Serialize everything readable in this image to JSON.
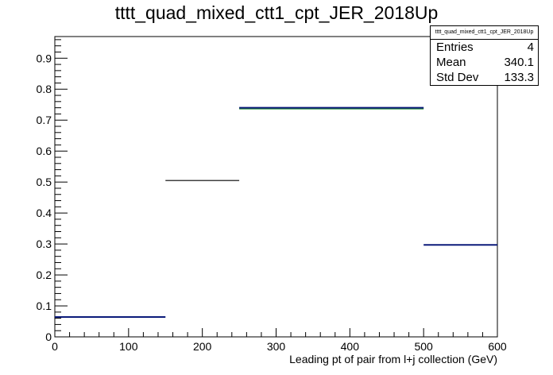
{
  "chart_data": {
    "type": "histogram-step",
    "title": "tttt_quad_mixed_ctt1_cpt_JER_2018Up",
    "xlabel": "Leading pt of pair from l+j collection (GeV)",
    "ylabel": "",
    "xlim": [
      0,
      600
    ],
    "ylim": [
      0,
      0.97
    ],
    "x_ticks": [
      0,
      100,
      200,
      300,
      400,
      500,
      600
    ],
    "x_tick_labels": [
      "0",
      "100",
      "200",
      "300",
      "400",
      "500",
      "600"
    ],
    "y_ticks": [
      0,
      0.1,
      0.2,
      0.3,
      0.4,
      0.5,
      0.6,
      0.7,
      0.8,
      0.9
    ],
    "y_tick_labels": [
      "0",
      "0.1",
      "0.2",
      "0.3",
      "0.4",
      "0.5",
      "0.6",
      "0.7",
      "0.8",
      "0.9"
    ],
    "grid": false,
    "bins": [
      {
        "xlow": 0,
        "xhigh": 150,
        "value": 0.064
      },
      {
        "xlow": 150,
        "xhigh": 250,
        "value": 0.505
      },
      {
        "xlow": 250,
        "xhigh": 500,
        "value": 0.74
      },
      {
        "xlow": 500,
        "xhigh": 600,
        "value": 0.297
      }
    ],
    "colors": {
      "line": "#000000",
      "bin_edges": "#0b1a7a",
      "highlight": "#1f8a2e"
    },
    "stats": {
      "name": "tttt_quad_mixed_ctt1_cpt_JER_2018Up",
      "rows": [
        {
          "label": "Entries",
          "value": "4"
        },
        {
          "label": "Mean",
          "value": "340.1"
        },
        {
          "label": "Std Dev",
          "value": "133.3"
        }
      ]
    }
  }
}
